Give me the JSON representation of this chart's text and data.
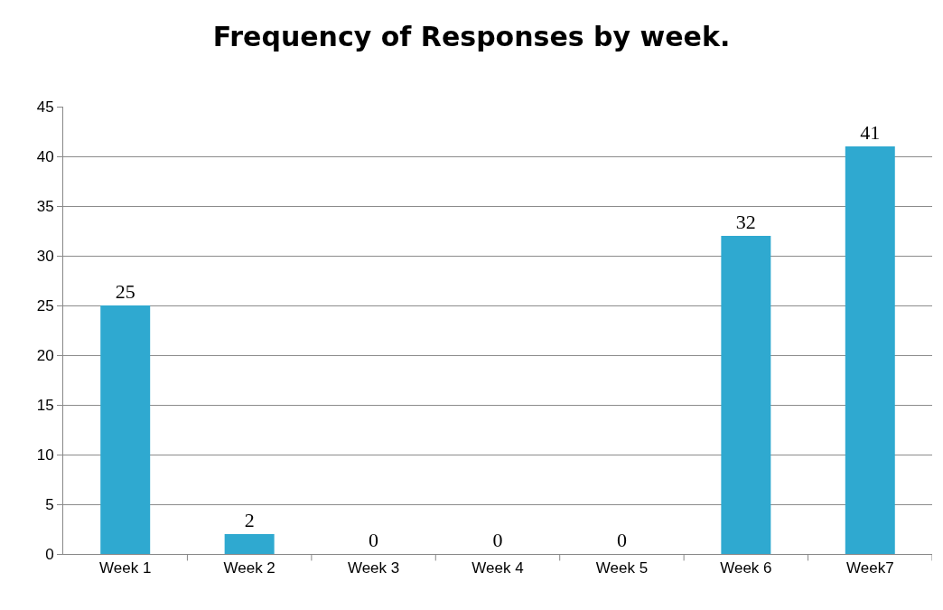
{
  "chart_data": {
    "type": "bar",
    "title": "Frequency of Responses by week.",
    "categories": [
      "Week 1",
      "Week 2",
      "Week 3",
      "Week 4",
      "Week 5",
      "Week 6",
      "Week7"
    ],
    "values": [
      25,
      2,
      0,
      0,
      0,
      32,
      41
    ],
    "color": "#2fa9d0",
    "ylim": [
      0,
      45
    ],
    "yticks": [
      0,
      5,
      10,
      15,
      20,
      25,
      30,
      35,
      40,
      45
    ],
    "grid": "y",
    "data_labels": true
  }
}
